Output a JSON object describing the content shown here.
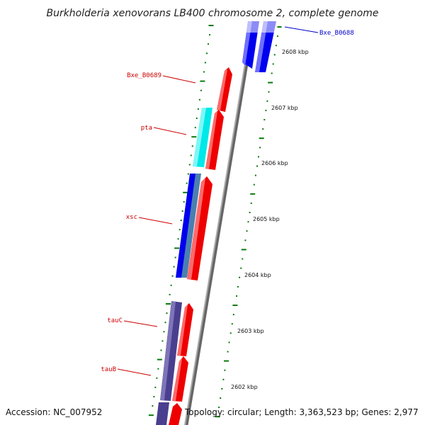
{
  "title": "Burkholderia xenovorans LB400 chromosome 2, complete genome",
  "footer": {
    "accession": "Accession: NC_007952",
    "topology": "Topology: circular; Length: 3,363,523 bp; Genes: 2,977"
  },
  "colors": {
    "forward_gene": "#ff0000",
    "reverse_gene": "#0000ee",
    "cyan_gene": "#00eeee",
    "purple_gene": "#4a3f8f",
    "backbone": "#888888",
    "tick": "#0a7a0a",
    "label_red": "#cc0000",
    "label_blue": "#0000cc"
  },
  "kbp_ticks": [
    {
      "label": "2608 kbp"
    },
    {
      "label": "2607 kbp"
    },
    {
      "label": "2606 kbp"
    },
    {
      "label": "2605 kbp"
    },
    {
      "label": "2604 kbp"
    },
    {
      "label": "2603 kbp"
    },
    {
      "label": "2602 kbp"
    }
  ],
  "gene_labels": [
    {
      "name": "Bxe_B0688",
      "color_key": "label_blue"
    },
    {
      "name": "Bxe_B0689",
      "color_key": "label_red"
    },
    {
      "name": "pta",
      "color_key": "label_red"
    },
    {
      "name": "xsc",
      "color_key": "label_red"
    },
    {
      "name": "tauC",
      "color_key": "label_red"
    },
    {
      "name": "tauB",
      "color_key": "label_red"
    }
  ]
}
